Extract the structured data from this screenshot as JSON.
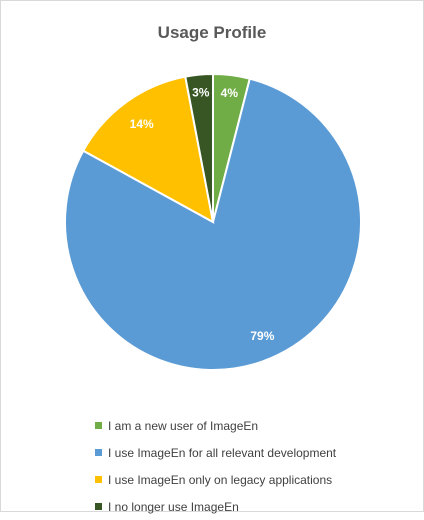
{
  "chart_data": {
    "type": "pie",
    "title": "Usage Profile",
    "categories": [
      "I am a new user of ImageEn",
      "I use ImageEn for all relevant development",
      "I use ImageEn only on legacy applications",
      "I no longer use ImageEn"
    ],
    "values": [
      4,
      79,
      14,
      3
    ],
    "data_labels": [
      "4%",
      "79%",
      "14%",
      "3%"
    ],
    "colors": [
      "#70ad47",
      "#5b9bd5",
      "#ffc000",
      "#375623"
    ],
    "legend_position": "bottom",
    "start_angle_deg": 0,
    "direction": "clockwise"
  }
}
